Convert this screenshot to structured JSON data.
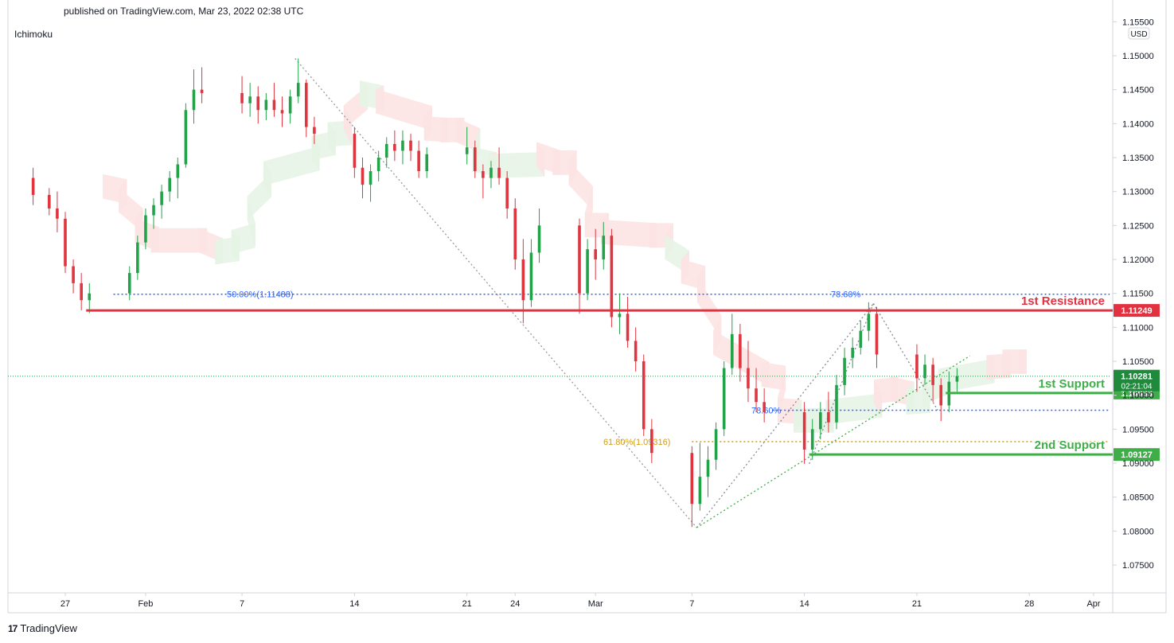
{
  "header": {
    "published_text": "published on TradingView.com, Mar 23, 2022 02:38 UTC",
    "indicator_label": "Ichimoku",
    "currency": "USD"
  },
  "footer": {
    "logo_text": "17",
    "brand": "TradingView"
  },
  "colors": {
    "up": "#26a69a",
    "candle_up": "#22a34a",
    "candle_down": "#e0343f",
    "resistance": "#e3313f",
    "support": "#3fae49",
    "fib_blue": "#2962ff",
    "fib_orange": "#d39e16",
    "cloud_red": "#fce3e3",
    "cloud_green": "#e5f4e6"
  },
  "chart_data": {
    "type": "candlestick",
    "instrument_currency": "USD",
    "ylim": [
      1.072,
      1.1545
    ],
    "y_ticks": [
      "1.15500",
      "1.15000",
      "1.14500",
      "1.14000",
      "1.13500",
      "1.13000",
      "1.12500",
      "1.12000",
      "1.11500",
      "1.11000",
      "1.10500",
      "1.10000",
      "1.09500",
      "1.09000",
      "1.08500",
      "1.08000",
      "1.07500"
    ],
    "x_ticks": [
      {
        "label": "27",
        "date": "2022-01-27"
      },
      {
        "label": "Feb",
        "date": "2022-02-01"
      },
      {
        "label": "7",
        "date": "2022-02-07"
      },
      {
        "label": "14",
        "date": "2022-02-14"
      },
      {
        "label": "21",
        "date": "2022-02-21"
      },
      {
        "label": "24",
        "date": "2022-02-24"
      },
      {
        "label": "Mar",
        "date": "2022-03-01"
      },
      {
        "label": "7",
        "date": "2022-03-07"
      },
      {
        "label": "14",
        "date": "2022-03-14"
      },
      {
        "label": "21",
        "date": "2022-03-21"
      },
      {
        "label": "28",
        "date": "2022-03-28"
      },
      {
        "label": "Apr",
        "date": "2022-04-01"
      }
    ],
    "levels": [
      {
        "name": "1st Resistance",
        "price": 1.11249,
        "price_label": "1.11249",
        "color": "#e3313f"
      },
      {
        "name": "1st Support",
        "price": 1.10033,
        "price_label": "1.10033",
        "color": "#3fae49"
      },
      {
        "name": "2nd Support",
        "price": 1.09127,
        "price_label": "1.09127",
        "color": "#3fae49"
      }
    ],
    "current_price": {
      "price": 1.10281,
      "label": "1.10281",
      "countdown": "02:21:04"
    },
    "fib_labels": [
      {
        "text": "50.00%(1.11488)",
        "price": 1.11488
      },
      {
        "text": "78.60%",
        "price": 1.1145
      },
      {
        "text": "78.60%",
        "price": 1.0978
      },
      {
        "text": "61.80%(1.09316)",
        "price": 1.09316
      }
    ],
    "fib_lines": [
      {
        "price": 1.11488,
        "from_date": "2022-01-30",
        "to_date": "2022-04-02",
        "style": "dotted-blue"
      },
      {
        "price": 1.0978,
        "from_date": "2022-03-12",
        "to_date": "2022-04-02",
        "style": "dotted-blue"
      },
      {
        "price": 1.09316,
        "from_date": "2022-03-07",
        "to_date": "2022-04-02",
        "style": "dotted-orange"
      }
    ],
    "trend_lines": [
      {
        "from": {
          "date": "2022-02-10",
          "price": 1.1496
        },
        "to": {
          "date": "2022-03-07",
          "price": 1.0805
        }
      },
      {
        "from": {
          "date": "2022-03-07",
          "price": 1.0805
        },
        "to": {
          "date": "2022-03-18",
          "price": 1.1135
        }
      },
      {
        "from": {
          "date": "2022-03-07",
          "price": 1.0805
        },
        "to": {
          "date": "2022-03-24",
          "price": 1.1058
        }
      },
      {
        "from": {
          "date": "2022-03-14",
          "price": 1.0899
        },
        "to": {
          "date": "2022-03-18",
          "price": 1.1135
        }
      },
      {
        "from": {
          "date": "2022-03-18",
          "price": 1.1135
        },
        "to": {
          "date": "2022-03-22",
          "price": 1.0978
        }
      }
    ],
    "candles_4h": [
      [
        "2022-01-25",
        1.132,
        1.1335,
        1.128,
        1.1295
      ],
      [
        "2022-01-26",
        1.1295,
        1.1305,
        1.1265,
        1.1275
      ],
      [
        "2022-01-26",
        1.1275,
        1.13,
        1.124,
        1.126
      ],
      [
        "2022-01-27",
        1.126,
        1.127,
        1.118,
        1.119
      ],
      [
        "2022-01-27",
        1.119,
        1.12,
        1.115,
        1.1165
      ],
      [
        "2022-01-28",
        1.1165,
        1.118,
        1.1125,
        1.114
      ],
      [
        "2022-01-28",
        1.114,
        1.1165,
        1.1121,
        1.115
      ],
      [
        "2022-01-31",
        1.115,
        1.119,
        1.114,
        1.118
      ],
      [
        "2022-01-31",
        1.118,
        1.1235,
        1.117,
        1.1225
      ],
      [
        "2022-02-01",
        1.1225,
        1.1275,
        1.1215,
        1.1265
      ],
      [
        "2022-02-01",
        1.1265,
        1.129,
        1.1245,
        1.128
      ],
      [
        "2022-02-02",
        1.128,
        1.131,
        1.126,
        1.13
      ],
      [
        "2022-02-02",
        1.13,
        1.133,
        1.1285,
        1.132
      ],
      [
        "2022-02-03",
        1.132,
        1.135,
        1.129,
        1.134
      ],
      [
        "2022-02-03",
        1.134,
        1.143,
        1.1335,
        1.142
      ],
      [
        "2022-02-04",
        1.142,
        1.148,
        1.14,
        1.145
      ],
      [
        "2022-02-04",
        1.145,
        1.1483,
        1.143,
        1.1445
      ],
      [
        "2022-02-07",
        1.1445,
        1.147,
        1.1415,
        1.143
      ],
      [
        "2022-02-07",
        1.143,
        1.146,
        1.141,
        1.144
      ],
      [
        "2022-02-08",
        1.144,
        1.1455,
        1.14,
        1.142
      ],
      [
        "2022-02-08",
        1.142,
        1.1445,
        1.1405,
        1.1435
      ],
      [
        "2022-02-09",
        1.1435,
        1.146,
        1.141,
        1.142
      ],
      [
        "2022-02-09",
        1.142,
        1.144,
        1.1395,
        1.1415
      ],
      [
        "2022-02-10",
        1.1415,
        1.145,
        1.14,
        1.144
      ],
      [
        "2022-02-10",
        1.144,
        1.1496,
        1.143,
        1.146
      ],
      [
        "2022-02-11",
        1.146,
        1.1465,
        1.138,
        1.1395
      ],
      [
        "2022-02-11",
        1.1395,
        1.141,
        1.137,
        1.1385
      ],
      [
        "2022-02-14",
        1.1385,
        1.1395,
        1.132,
        1.1335
      ],
      [
        "2022-02-14",
        1.1335,
        1.135,
        1.129,
        1.131
      ],
      [
        "2022-02-15",
        1.131,
        1.134,
        1.1285,
        1.133
      ],
      [
        "2022-02-15",
        1.133,
        1.136,
        1.1315,
        1.135
      ],
      [
        "2022-02-16",
        1.135,
        1.138,
        1.1335,
        1.137
      ],
      [
        "2022-02-16",
        1.137,
        1.139,
        1.1345,
        1.136
      ],
      [
        "2022-02-17",
        1.136,
        1.139,
        1.134,
        1.1375
      ],
      [
        "2022-02-17",
        1.1375,
        1.1385,
        1.1345,
        1.136
      ],
      [
        "2022-02-18",
        1.136,
        1.1375,
        1.132,
        1.133
      ],
      [
        "2022-02-18",
        1.133,
        1.1365,
        1.132,
        1.1355
      ],
      [
        "2022-02-21",
        1.1355,
        1.1395,
        1.134,
        1.1365
      ],
      [
        "2022-02-21",
        1.1365,
        1.1375,
        1.132,
        1.133
      ],
      [
        "2022-02-22",
        1.133,
        1.134,
        1.129,
        1.132
      ],
      [
        "2022-02-22",
        1.132,
        1.1345,
        1.1305,
        1.1335
      ],
      [
        "2022-02-23",
        1.1335,
        1.1365,
        1.131,
        1.132
      ],
      [
        "2022-02-23",
        1.132,
        1.133,
        1.126,
        1.1275
      ],
      [
        "2022-02-24",
        1.1275,
        1.129,
        1.1185,
        1.12
      ],
      [
        "2022-02-24",
        1.12,
        1.123,
        1.1106,
        1.114
      ],
      [
        "2022-02-25",
        1.114,
        1.123,
        1.113,
        1.121
      ],
      [
        "2022-02-25",
        1.121,
        1.1275,
        1.1195,
        1.125
      ],
      [
        "2022-02-28",
        1.125,
        1.126,
        1.112,
        1.115
      ],
      [
        "2022-02-28",
        1.115,
        1.123,
        1.114,
        1.1215
      ],
      [
        "2022-03-01",
        1.1215,
        1.1245,
        1.117,
        1.12
      ],
      [
        "2022-03-01",
        1.12,
        1.1255,
        1.1185,
        1.1235
      ],
      [
        "2022-03-02",
        1.1235,
        1.1245,
        1.11,
        1.1115
      ],
      [
        "2022-03-02",
        1.1115,
        1.115,
        1.109,
        1.112
      ],
      [
        "2022-03-03",
        1.112,
        1.1145,
        1.107,
        1.108
      ],
      [
        "2022-03-03",
        1.108,
        1.11,
        1.1035,
        1.105
      ],
      [
        "2022-03-04",
        1.105,
        1.106,
        1.094,
        1.095
      ],
      [
        "2022-03-04",
        1.095,
        1.0965,
        1.09,
        1.0915
      ],
      [
        "2022-03-07",
        1.0915,
        1.0925,
        1.0806,
        1.084
      ],
      [
        "2022-03-07",
        1.084,
        1.093,
        1.083,
        1.088
      ],
      [
        "2022-03-08",
        1.088,
        1.0925,
        1.085,
        1.0905
      ],
      [
        "2022-03-08",
        1.0905,
        1.096,
        1.089,
        1.095
      ],
      [
        "2022-03-09",
        1.095,
        1.105,
        1.094,
        1.104
      ],
      [
        "2022-03-09",
        1.104,
        1.112,
        1.103,
        1.109
      ],
      [
        "2022-03-10",
        1.109,
        1.1105,
        1.102,
        1.104
      ],
      [
        "2022-03-10",
        1.104,
        1.108,
        1.099,
        1.101
      ],
      [
        "2022-03-11",
        1.101,
        1.104,
        1.0975,
        1.099
      ],
      [
        "2022-03-11",
        1.099,
        1.101,
        1.096,
        1.0975
      ],
      [
        "2022-03-14",
        1.0975,
        1.099,
        1.0899,
        1.092
      ],
      [
        "2022-03-14",
        1.092,
        1.0965,
        1.0905,
        1.095
      ],
      [
        "2022-03-15",
        1.095,
        1.099,
        1.0935,
        1.0975
      ],
      [
        "2022-03-15",
        1.0975,
        1.1005,
        1.0945,
        1.096
      ],
      [
        "2022-03-16",
        1.096,
        1.103,
        1.095,
        1.1015
      ],
      [
        "2022-03-16",
        1.1015,
        1.107,
        1.1,
        1.1055
      ],
      [
        "2022-03-17",
        1.1055,
        1.1085,
        1.104,
        1.107
      ],
      [
        "2022-03-17",
        1.107,
        1.111,
        1.106,
        1.1095
      ],
      [
        "2022-03-18",
        1.1095,
        1.1137,
        1.108,
        1.112
      ],
      [
        "2022-03-18",
        1.112,
        1.113,
        1.104,
        1.106
      ],
      [
        "2022-03-21",
        1.106,
        1.1075,
        1.1005,
        1.1025
      ],
      [
        "2022-03-21",
        1.1025,
        1.106,
        1.1015,
        1.1045
      ],
      [
        "2022-03-22",
        1.1045,
        1.1055,
        1.099,
        1.1015
      ],
      [
        "2022-03-22",
        1.1015,
        1.1025,
        1.0962,
        1.0985
      ],
      [
        "2022-03-23",
        1.0985,
        1.1035,
        1.0975,
        1.102
      ],
      [
        "2022-03-23",
        1.102,
        1.104,
        1.1005,
        1.1028
      ]
    ]
  }
}
